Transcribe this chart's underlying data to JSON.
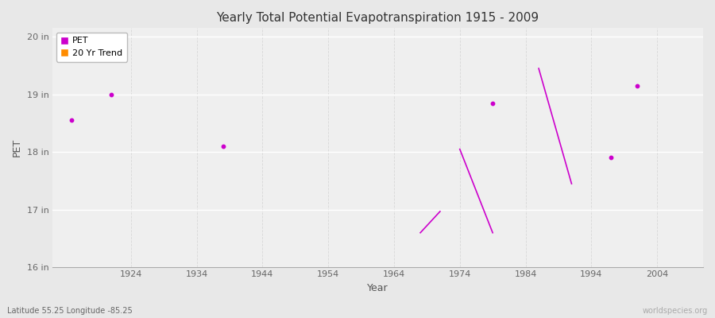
{
  "title": "Yearly Total Potential Evapotranspiration 1915 - 2009",
  "xlabel": "Year",
  "ylabel": "PET",
  "subtitle": "Latitude 55.25 Longitude -85.25",
  "watermark": "worldspecies.org",
  "xlim": [
    1912,
    2011
  ],
  "ylim": [
    16,
    20.15
  ],
  "yticks": [
    16,
    17,
    18,
    19,
    20
  ],
  "ytick_labels": [
    "16 in",
    "17 in",
    "18 in",
    "19 in",
    "20 in"
  ],
  "xticks": [
    1924,
    1934,
    1944,
    1954,
    1964,
    1974,
    1984,
    1994,
    2004
  ],
  "xtick_labels": [
    "1924",
    "1934",
    "1944",
    "1954",
    "1964",
    "1974",
    "1984",
    "1994",
    "2004"
  ],
  "bg_color": "#e8e8e8",
  "plot_bg_color": "#efefef",
  "grid_color_h": "#ffffff",
  "grid_color_v": "#d8d8d8",
  "pet_color": "#cc00cc",
  "trend_color": "#ff8c00",
  "pet_points": [
    [
      1915,
      18.55
    ],
    [
      1921,
      19.0
    ],
    [
      1938,
      18.1
    ],
    [
      1979,
      18.85
    ],
    [
      1997,
      17.9
    ],
    [
      2001,
      19.15
    ]
  ],
  "trend_segments": [
    [
      [
        1968,
        16.6
      ],
      [
        1971,
        16.97
      ]
    ],
    [
      [
        1974,
        18.05
      ],
      [
        1979,
        16.6
      ]
    ],
    [
      [
        1986,
        19.45
      ],
      [
        1991,
        17.45
      ]
    ]
  ]
}
